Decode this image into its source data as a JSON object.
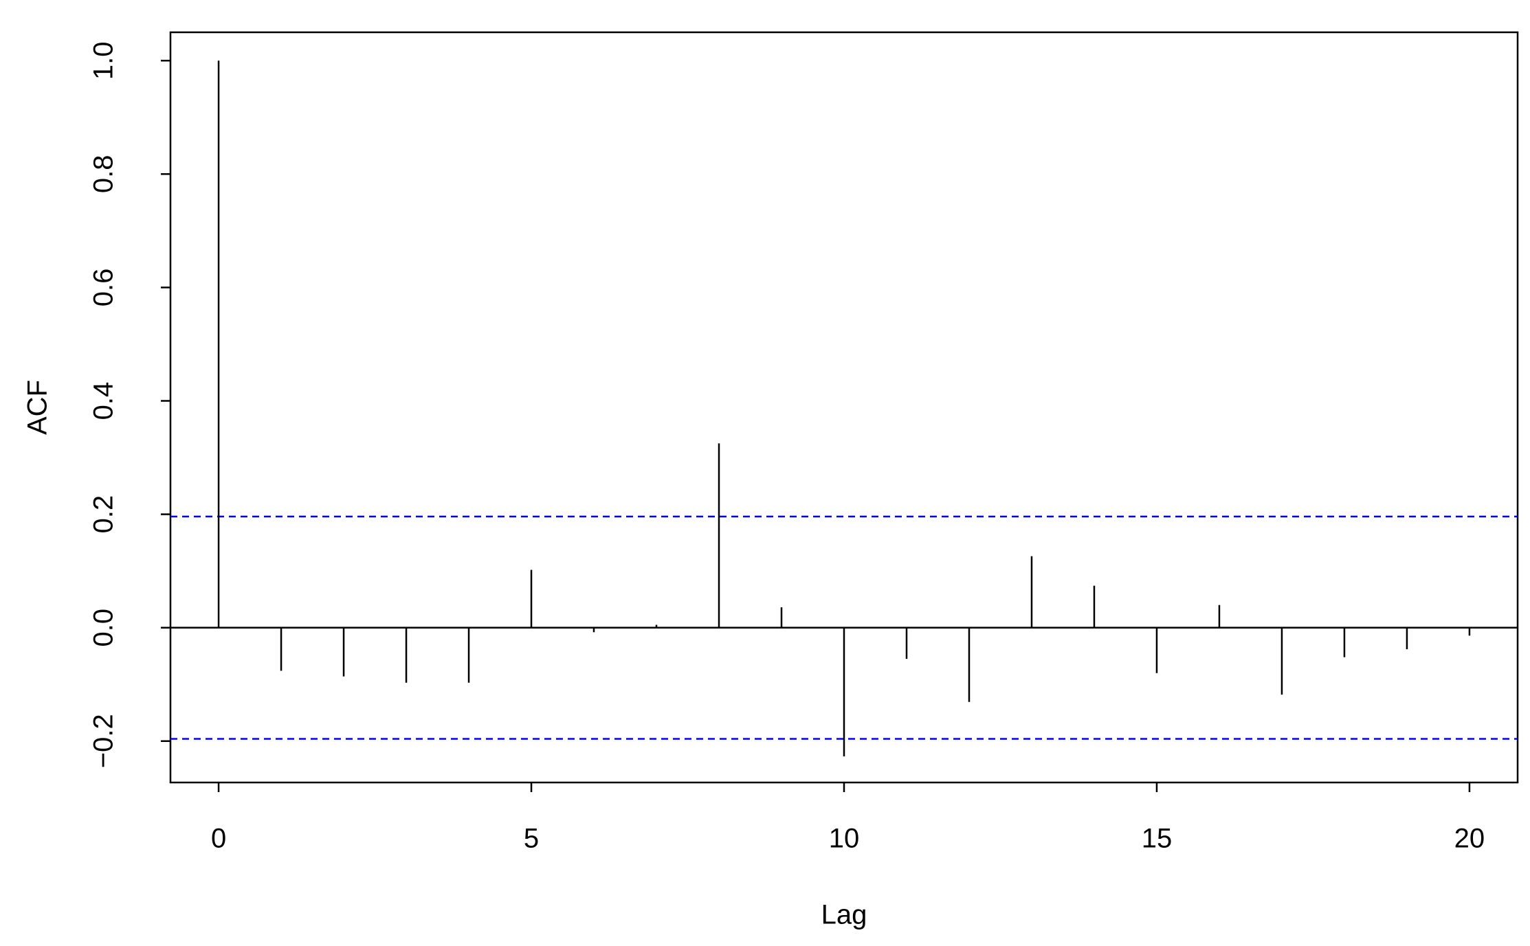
{
  "chart_data": {
    "type": "acf",
    "xlabel": "Lag",
    "ylabel": "ACF",
    "x": [
      0,
      1,
      2,
      3,
      4,
      5,
      6,
      7,
      8,
      9,
      10,
      11,
      12,
      13,
      14,
      15,
      16,
      17,
      18,
      19,
      20
    ],
    "values": [
      1.0,
      -0.076,
      -0.086,
      -0.097,
      -0.097,
      0.102,
      -0.008,
      0.005,
      0.325,
      0.036,
      -0.227,
      -0.055,
      -0.131,
      0.126,
      0.074,
      -0.08,
      0.04,
      -0.118,
      -0.052,
      -0.038,
      -0.014
    ],
    "color": "#000000",
    "xlim": [
      -0.77,
      20.77
    ],
    "xticks": [
      0,
      5,
      10,
      15,
      20
    ],
    "ylim": [
      -0.273,
      1.05
    ],
    "yticks": [
      {
        "value": -0.2,
        "label": "−0.2"
      },
      {
        "value": 0,
        "label": "0.0"
      },
      0.2,
      0.4,
      0.6,
      0.8,
      {
        "value": 1,
        "label": "1.0"
      }
    ],
    "conf_lines": [
      0.196,
      -0.196
    ],
    "conf_color": "#0000ff"
  }
}
